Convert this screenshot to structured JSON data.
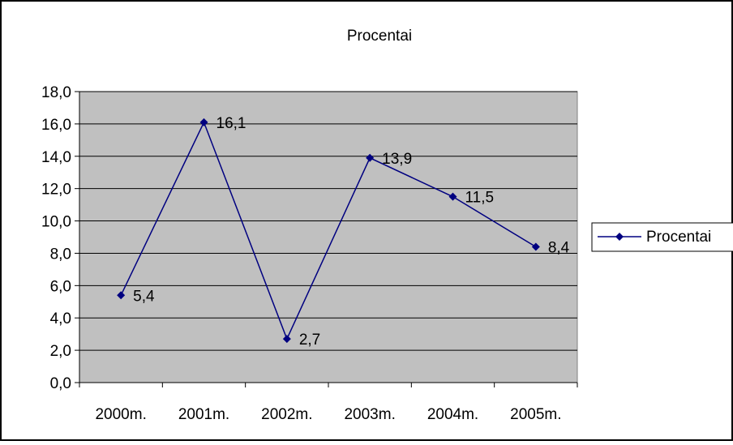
{
  "chart_data": {
    "type": "line",
    "title": "Procentai",
    "xlabel": "",
    "ylabel": "",
    "categories": [
      "2000m.",
      "2001m.",
      "2002m.",
      "2003m.",
      "2004m.",
      "2005m."
    ],
    "series": [
      {
        "name": "Procentai",
        "values": [
          5.4,
          16.1,
          2.7,
          13.9,
          11.5,
          8.4
        ],
        "data_labels": [
          "5,4",
          "16,1",
          "2,7",
          "13,9",
          "11,5",
          "8,4"
        ],
        "color": "#000080",
        "marker": "diamond"
      }
    ],
    "ylim": [
      0,
      18
    ],
    "yticks": [
      0,
      2,
      4,
      6,
      8,
      10,
      12,
      14,
      16,
      18
    ],
    "ytick_labels": [
      "0,0",
      "2,0",
      "4,0",
      "6,0",
      "8,0",
      "10,0",
      "12,0",
      "14,0",
      "16,0",
      "18,0"
    ],
    "grid": true,
    "plot_background": "#c0c0c0",
    "legend": {
      "position": "right",
      "label": "Procentai"
    }
  }
}
